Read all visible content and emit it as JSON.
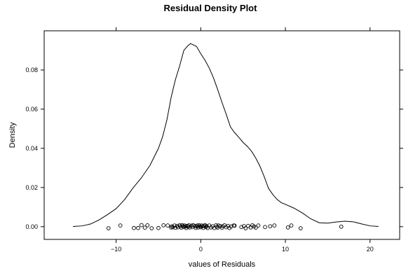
{
  "chart_data": {
    "type": "line",
    "title": "Residual Density Plot",
    "xlabel": "values of Residuals",
    "ylabel": "Density",
    "xlim": [
      -18.5,
      23.5
    ],
    "ylim": [
      -0.0065,
      0.1
    ],
    "grid": false,
    "x_ticks": [
      -10,
      0,
      10,
      20
    ],
    "x_tick_labels": [
      "−10",
      "0",
      "10",
      "20"
    ],
    "y_ticks": [
      0.0,
      0.02,
      0.04,
      0.06,
      0.08
    ],
    "y_tick_labels": [
      "0.00",
      "0.02",
      "0.04",
      "0.06",
      "0.08"
    ],
    "series": [
      {
        "x": [
          -15.1,
          -14.0,
          -13.0,
          -12.0,
          -11.0,
          -10.0,
          -9.0,
          -8.0,
          -7.0,
          -6.0,
          -5.0,
          -4.5,
          -4.0,
          -3.5,
          -3.0,
          -2.5,
          -2.0,
          -1.5,
          -1.2,
          -0.5,
          0.0,
          0.5,
          1.0,
          1.5,
          2.0,
          2.5,
          3.0,
          3.5,
          4.0,
          4.5,
          5.0,
          5.5,
          6.0,
          6.5,
          7.0,
          7.5,
          8.0,
          8.5,
          9.0,
          9.5,
          10.0,
          11.0,
          12.0,
          13.0,
          14.0,
          15.0,
          16.0,
          17.0,
          18.0,
          19.0,
          20.0,
          21.0
        ],
        "y": [
          0.0001,
          0.0004,
          0.0014,
          0.0035,
          0.0062,
          0.0092,
          0.0138,
          0.0198,
          0.025,
          0.0313,
          0.04,
          0.046,
          0.0545,
          0.066,
          0.075,
          0.082,
          0.09,
          0.0925,
          0.0935,
          0.092,
          0.0883,
          0.085,
          0.081,
          0.076,
          0.07,
          0.0635,
          0.0575,
          0.051,
          0.048,
          0.0456,
          0.043,
          0.041,
          0.0385,
          0.035,
          0.0308,
          0.0255,
          0.0196,
          0.0165,
          0.014,
          0.0123,
          0.0114,
          0.0095,
          0.007,
          0.004,
          0.002,
          0.0018,
          0.0024,
          0.0028,
          0.0025,
          0.0014,
          0.0004,
          0.0001
        ]
      }
    ],
    "rug_points": {
      "x": [
        -10.9,
        -9.5,
        -7.9,
        -7.4,
        -7.0,
        -6.6,
        -6.3,
        -5.8,
        -5.0,
        -4.4,
        -3.9,
        -3.5,
        -3.4,
        -3.3,
        -3.1,
        -3.0,
        -2.8,
        -2.7,
        -2.5,
        -2.4,
        -2.3,
        -2.2,
        -2.1,
        -2.0,
        -1.9,
        -1.8,
        -1.7,
        -1.6,
        -1.5,
        -1.4,
        -1.3,
        -1.1,
        -1.0,
        -0.9,
        -0.7,
        -0.6,
        -0.5,
        -0.4,
        -0.3,
        -0.2,
        -0.1,
        0.0,
        0.1,
        0.2,
        0.3,
        0.4,
        0.5,
        0.6,
        0.7,
        0.8,
        1.0,
        1.2,
        1.4,
        1.6,
        1.8,
        1.9,
        2.0,
        2.1,
        2.3,
        2.5,
        2.6,
        2.8,
        3.0,
        3.2,
        3.4,
        3.6,
        3.9,
        4.0,
        4.8,
        5.1,
        5.3,
        5.6,
        5.9,
        6.1,
        6.3,
        6.5,
        6.8,
        7.6,
        8.2,
        8.7,
        10.3,
        10.7,
        11.8,
        16.6
      ],
      "y": [
        -0.0008,
        0.0006,
        -0.0007,
        -0.0007,
        0.0008,
        -0.0005,
        0.0007,
        -0.0008,
        -0.0007,
        0.0007,
        0.0006,
        -0.0004,
        0.0002,
        -0.0003,
        0.0006,
        -0.0006,
        0.0004,
        -0.0003,
        0.0007,
        0.0002,
        -0.0005,
        0.0008,
        0.0003,
        -0.0002,
        0.0006,
        0.0001,
        -0.0007,
        0.0004,
        0.0,
        0.0007,
        -0.0004,
        0.0005,
        -0.0002,
        0.0008,
        0.0003,
        -0.0006,
        0.0002,
        0.0006,
        -0.0004,
        0.0007,
        0.0001,
        -0.0003,
        0.0006,
        0.0002,
        -0.0006,
        0.0004,
        0.0008,
        -0.0002,
        0.0003,
        -0.0007,
        0.0006,
        -0.0004,
        0.0002,
        -0.0007,
        0.0007,
        0.0,
        -0.0005,
        0.0006,
        0.0003,
        -0.0006,
        0.0002,
        0.0007,
        -0.0003,
        0.0004,
        -0.0007,
        0.0001,
        0.0006,
        0.0005,
        -0.0002,
        0.0003,
        -0.0008,
        0.0004,
        -0.0004,
        0.0007,
        0.0001,
        -0.0005,
        0.0006,
        -0.0002,
        0.0002,
        0.0006,
        -0.0004,
        0.0006,
        -0.0008,
        0.0
      ]
    }
  }
}
